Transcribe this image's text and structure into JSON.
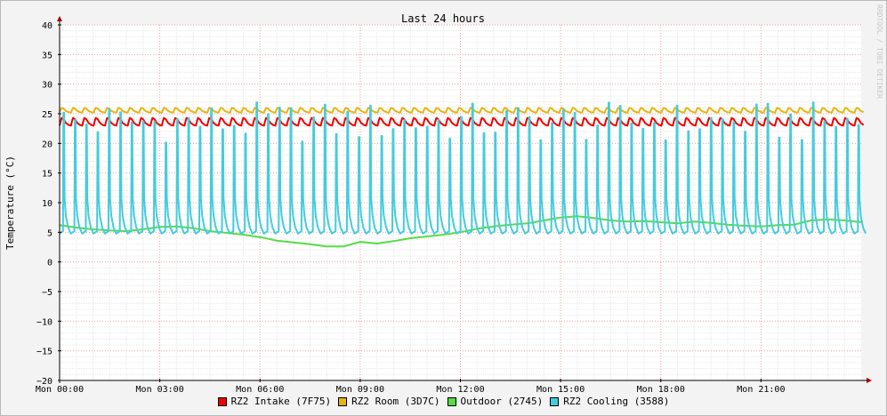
{
  "chart_data": {
    "type": "line",
    "title": "Last 24 hours",
    "ylabel": "Temperature (°C)",
    "xlabel": "",
    "watermark": "RRDTOOL / TOBI OETIKER",
    "ylim": [
      -20,
      40
    ],
    "yticks": [
      40,
      35,
      30,
      25,
      20,
      15,
      10,
      5,
      0,
      -5,
      -10,
      -15,
      -20
    ],
    "ytick_labels": [
      "40",
      "35",
      "30",
      "25",
      "20",
      "15",
      "10",
      "5",
      "0",
      "−5",
      "−10",
      "−15",
      "−20"
    ],
    "xlim_hours": [
      0,
      24.0
    ],
    "xticks_hours": [
      0,
      3,
      6,
      9,
      12,
      15,
      18,
      21
    ],
    "xtick_labels": [
      "Mon 00:00",
      "Mon 03:00",
      "Mon 06:00",
      "Mon 09:00",
      "Mon 12:00",
      "Mon 15:00",
      "Mon 18:00",
      "Mon 21:00"
    ],
    "grid": true,
    "legend_position": "bottom-center",
    "series": [
      {
        "name": "RZ2 Intake (7F75)",
        "color": "#ee0000",
        "kind": "sawtooth",
        "hours": [
          0,
          24
        ],
        "period_h": 0.34,
        "low": 23.0,
        "high": 24.3,
        "pattern": "rise-and-decay"
      },
      {
        "name": "RZ2 Room (3D7C)",
        "color": "#e8b410",
        "kind": "sawtooth",
        "hours": [
          0,
          24
        ],
        "period_h": 0.34,
        "low": 25.2,
        "high": 26.0,
        "pattern": "rise-and-decay"
      },
      {
        "name": "Outdoor (2745)",
        "color": "#55dd44",
        "kind": "line",
        "x": [
          0,
          0.5,
          1,
          1.5,
          2,
          2.5,
          3,
          3.5,
          4,
          4.5,
          5,
          5.5,
          6,
          6.5,
          7,
          7.5,
          8,
          8.5,
          9,
          9.5,
          10,
          10.5,
          11,
          11.5,
          12,
          12.5,
          13,
          13.5,
          14,
          14.5,
          15,
          15.5,
          16,
          16.5,
          17,
          17.5,
          18,
          18.5,
          19,
          19.5,
          20,
          20.5,
          21,
          21.5,
          22,
          22.5,
          23,
          23.5,
          24
        ],
        "values": [
          6.2,
          5.8,
          5.5,
          5.3,
          5.2,
          5.5,
          5.9,
          6.0,
          5.7,
          5.2,
          4.9,
          4.6,
          4.2,
          3.6,
          3.3,
          3.0,
          2.6,
          2.6,
          3.4,
          3.1,
          3.5,
          4.0,
          4.3,
          4.6,
          5.0,
          5.6,
          6.0,
          6.3,
          6.5,
          7.0,
          7.5,
          7.7,
          7.4,
          7.0,
          6.8,
          6.9,
          6.7,
          6.5,
          6.8,
          6.6,
          6.3,
          6.1,
          6.0,
          6.2,
          6.3,
          7.0,
          7.2,
          7.0,
          6.7
        ]
      },
      {
        "name": "RZ2 Cooling (3588)",
        "color": "#44ccdd",
        "kind": "spikes",
        "hours": [
          0,
          24
        ],
        "period_h": 0.34,
        "base": 4.8,
        "peak_min": 20.0,
        "peak_max": 27.0
      }
    ]
  }
}
